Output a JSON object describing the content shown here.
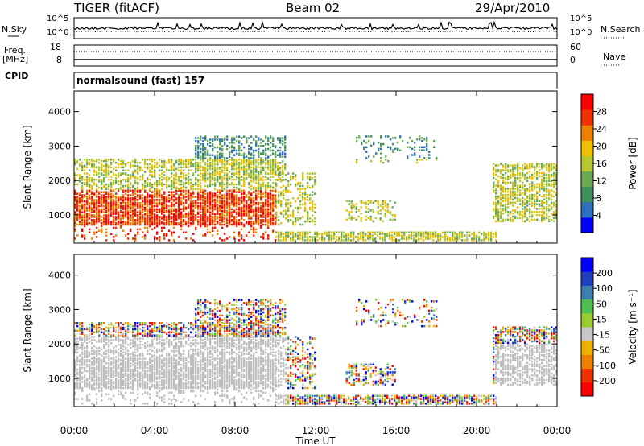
{
  "header": {
    "radar": "TIGER (fitACF)",
    "beam": "Beam 02",
    "date": "29/Apr/2010"
  },
  "noise_panel": {
    "left_label": "N.Sky",
    "right_label": "N.Search",
    "left_ticks": [
      "10^5",
      "10^0"
    ],
    "right_ticks": [
      "10^5",
      "10^0"
    ]
  },
  "freq_panel": {
    "left_label_1": "Freq.",
    "left_label_2": "[MHz]",
    "right_label": "Nave",
    "left_ticks": [
      "18",
      "8"
    ],
    "right_ticks": [
      "60",
      "0"
    ]
  },
  "cpid_panel": {
    "label": "CPID",
    "program": "normalsound (fast) 157"
  },
  "colors": {
    "power_scale": [
      "#0000ff",
      "#2f6fc0",
      "#3f8f5f",
      "#6aaa55",
      "#b8c830",
      "#f0c000",
      "#f08000",
      "#f03000",
      "#ff0000"
    ],
    "velocity_scale": [
      "#ff0000",
      "#f03000",
      "#f08000",
      "#f0b000",
      "#c8c8c8",
      "#9acd32",
      "#4fbf4f",
      "#3f7faf",
      "#1f3fbf",
      "#0000ff"
    ],
    "ground_scatter": "#bebebe"
  },
  "chart_data": [
    {
      "type": "heatmap",
      "name": "power",
      "xlabel": "",
      "ylabel": "Slant Range [km]",
      "x_ticks": [
        "00:00",
        "04:00",
        "08:00",
        "12:00",
        "16:00",
        "20:00",
        "00:00"
      ],
      "xlim_hours": [
        0,
        24
      ],
      "y_ticks": [
        1000,
        2000,
        3000,
        4000
      ],
      "ylim": [
        180,
        4600
      ],
      "colorbar": {
        "label": "Power [dB]",
        "ticks": [
          4,
          8,
          12,
          16,
          20,
          24,
          28
        ],
        "range": [
          0,
          32
        ]
      }
    },
    {
      "type": "heatmap",
      "name": "velocity",
      "xlabel": "Time UT",
      "ylabel": "Slant Range [km]",
      "x_ticks": [
        "00:00",
        "04:00",
        "08:00",
        "12:00",
        "16:00",
        "20:00",
        "00:00"
      ],
      "xlim_hours": [
        0,
        24
      ],
      "y_ticks": [
        1000,
        2000,
        3000,
        4000
      ],
      "ylim": [
        180,
        4600
      ],
      "colorbar": {
        "label": "Velocity [m s⁻¹]",
        "ticks": [
          -200,
          -100,
          -50,
          -15,
          15,
          50,
          100,
          200
        ]
      }
    }
  ]
}
